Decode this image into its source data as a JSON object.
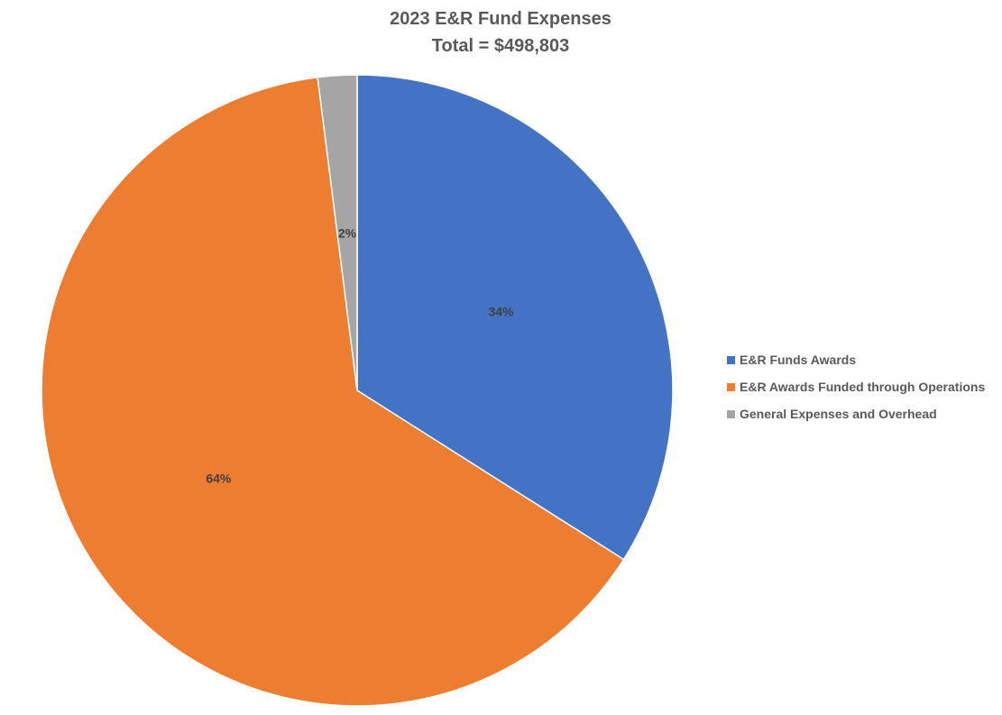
{
  "chart_data": {
    "type": "pie",
    "title": "2023 E&R Fund Expenses",
    "subtitle": "Total = $498,803",
    "legend_position": "right",
    "slices": [
      {
        "name": "E&R Funds Awards",
        "value": 34,
        "label": "34%",
        "color": "#4472C4"
      },
      {
        "name": "E&R Awards Funded through Operations",
        "value": 64,
        "label": "64%",
        "color": "#ED7D31"
      },
      {
        "name": "General Expenses and Overhead",
        "value": 2,
        "label": "2%",
        "color": "#A5A5A5"
      }
    ]
  }
}
